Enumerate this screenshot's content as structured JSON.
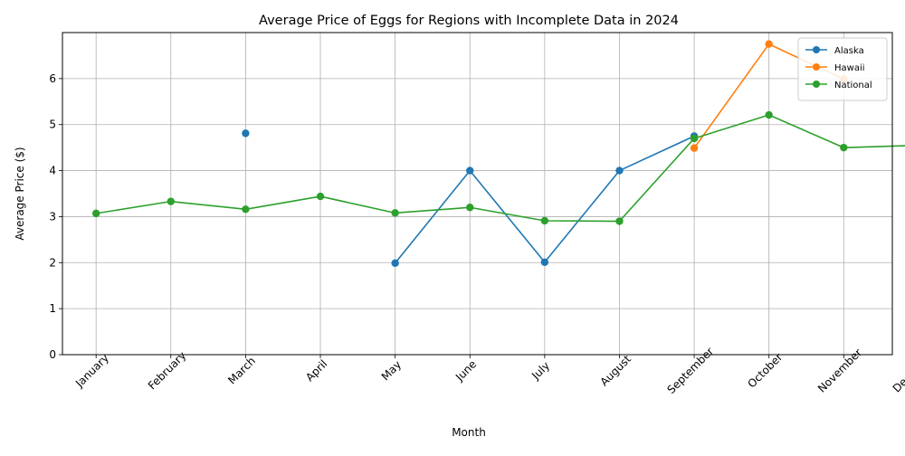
{
  "chart_data": {
    "type": "line",
    "title": "Average Price of Eggs for Regions with Incomplete Data in 2024",
    "xlabel": "Month",
    "ylabel": "Average Price ($)",
    "categories": [
      "January",
      "February",
      "March",
      "April",
      "May",
      "June",
      "July",
      "August",
      "September",
      "October",
      "November",
      "December"
    ],
    "ylim": [
      0,
      7
    ],
    "yticks": [
      0,
      1,
      2,
      3,
      4,
      5,
      6
    ],
    "grid": true,
    "legend_position": "top-right",
    "series": [
      {
        "name": "Alaska",
        "color": "#1f77b4",
        "values": [
          null,
          null,
          4.81,
          null,
          1.99,
          4.0,
          2.01,
          4.0,
          4.75,
          null,
          null,
          null
        ]
      },
      {
        "name": "Hawaii",
        "color": "#ff7f0e",
        "values": [
          null,
          null,
          null,
          null,
          null,
          null,
          null,
          null,
          4.49,
          6.75,
          5.99,
          null
        ]
      },
      {
        "name": "National",
        "color": "#2ca02c",
        "values": [
          3.07,
          3.33,
          3.16,
          3.44,
          3.08,
          3.2,
          2.91,
          2.9,
          4.7,
          5.21,
          4.5,
          4.55
        ]
      }
    ]
  }
}
